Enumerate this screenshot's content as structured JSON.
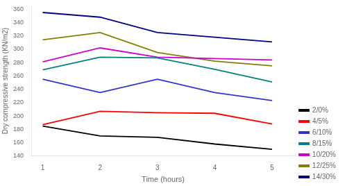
{
  "chart_data": {
    "type": "line",
    "x": [
      1,
      2,
      3,
      4,
      5
    ],
    "series": [
      {
        "name": "2/0%",
        "color": "#000000",
        "values": [
          185,
          170,
          168,
          158,
          150
        ]
      },
      {
        "name": "4/5%",
        "color": "#ff0000",
        "values": [
          187,
          207,
          205,
          204,
          188
        ]
      },
      {
        "name": "6/10%",
        "color": "#3333cc",
        "values": [
          255,
          235,
          255,
          235,
          223
        ]
      },
      {
        "name": "8/15%",
        "color": "#008080",
        "values": [
          269,
          288,
          287,
          270,
          251
        ]
      },
      {
        "name": "10/20%",
        "color": "#cc00cc",
        "values": [
          281,
          302,
          288,
          286,
          284
        ]
      },
      {
        "name": "12/25%",
        "color": "#808000",
        "values": [
          314,
          325,
          295,
          282,
          275
        ]
      },
      {
        "name": "14/30%",
        "color": "#000080",
        "values": [
          355,
          348,
          325,
          318,
          311
        ]
      }
    ],
    "xlabel": "Time (hours)",
    "ylabel": "Dry compressive strength (KN/m2)",
    "xlim": [
      0.8,
      5.4
    ],
    "xticks": [
      1,
      2,
      3,
      4,
      5
    ],
    "ylim": [
      140,
      365
    ],
    "yticks": [
      140,
      160,
      180,
      200,
      220,
      240,
      260,
      280,
      300,
      320,
      340,
      360
    ],
    "grid": false,
    "legend": "lower right"
  }
}
